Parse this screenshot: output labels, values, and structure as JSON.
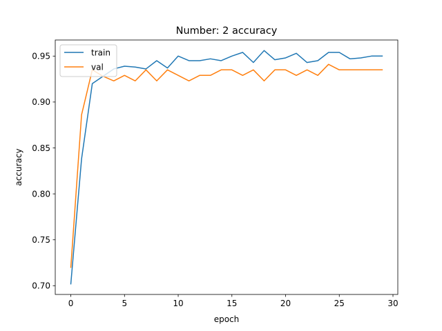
{
  "chart_data": {
    "type": "line",
    "title": "Number: 2 accuracy",
    "xlabel": "epoch",
    "ylabel": "accuracy",
    "xlim": [
      -1.45,
      30.45
    ],
    "ylim": [
      0.6905,
      0.9675
    ],
    "x_ticks": [
      0,
      5,
      10,
      15,
      20,
      25,
      30
    ],
    "x_tick_labels": [
      "0",
      "5",
      "10",
      "15",
      "20",
      "25",
      "30"
    ],
    "y_ticks": [
      0.7,
      0.75,
      0.8,
      0.85,
      0.9,
      0.95
    ],
    "y_tick_labels": [
      "0.70",
      "0.75",
      "0.80",
      "0.85",
      "0.90",
      "0.95"
    ],
    "grid": false,
    "legend_position": "upper-left",
    "x": [
      0,
      1,
      2,
      3,
      4,
      5,
      6,
      7,
      8,
      9,
      10,
      11,
      12,
      13,
      14,
      15,
      16,
      17,
      18,
      19,
      20,
      21,
      22,
      23,
      24,
      25,
      26,
      27,
      28,
      29
    ],
    "series": [
      {
        "name": "train",
        "color": "#1f77b4",
        "values": [
          0.702,
          0.838,
          0.92,
          0.928,
          0.936,
          0.939,
          0.938,
          0.936,
          0.945,
          0.937,
          0.95,
          0.945,
          0.945,
          0.947,
          0.945,
          0.95,
          0.954,
          0.943,
          0.956,
          0.946,
          0.948,
          0.953,
          0.943,
          0.945,
          0.954,
          0.954,
          0.947,
          0.948,
          0.95,
          0.95
        ]
      },
      {
        "name": "val",
        "color": "#ff7f0e",
        "values": [
          0.72,
          0.886,
          0.935,
          0.928,
          0.923,
          0.929,
          0.923,
          0.935,
          0.923,
          0.935,
          0.929,
          0.923,
          0.929,
          0.929,
          0.935,
          0.935,
          0.929,
          0.935,
          0.923,
          0.935,
          0.935,
          0.929,
          0.935,
          0.929,
          0.941,
          0.935,
          0.935,
          0.935,
          0.935,
          0.935
        ]
      }
    ]
  }
}
